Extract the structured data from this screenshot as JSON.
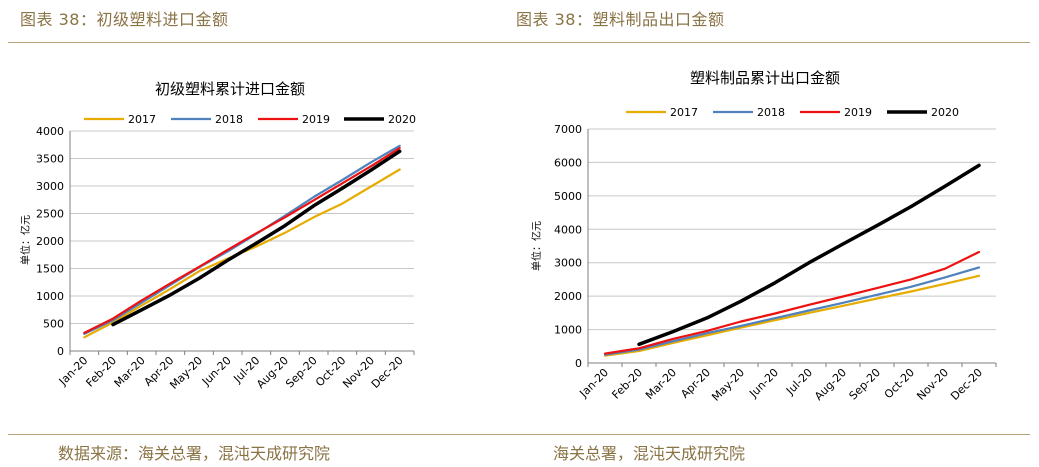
{
  "header": {
    "left_title": "图表 38：初级塑料进口金额",
    "right_title": "图表 38：塑料制品出口金额"
  },
  "footer": {
    "left_source": "数据来源：海关总署，混沌天成研究院",
    "right_source": "海关总署，混沌天成研究院"
  },
  "colors": {
    "accent": "#8a7345",
    "rule": "#b8a27a",
    "series": [
      "#e6ac00",
      "#4f81bd",
      "#ee1111",
      "#000000"
    ]
  },
  "chart_data": [
    {
      "type": "line",
      "title": "初级塑料累计进口金额",
      "xlabel": "",
      "ylabel": "单位：亿元",
      "ylim": [
        0,
        4000
      ],
      "yticks": [
        0,
        500,
        1000,
        1500,
        2000,
        2500,
        3000,
        3500,
        4000
      ],
      "grid": true,
      "legend": "top",
      "categories": [
        "Jan-20",
        "Feb-20",
        "Mar-20",
        "Apr-20",
        "May-20",
        "Jun-20",
        "Jul-20",
        "Aug-20",
        "Sep-20",
        "Oct-20",
        "Nov-20",
        "Dec-20"
      ],
      "series": [
        {
          "name": "2017",
          "values": [
            250,
            520,
            830,
            1130,
            1450,
            1680,
            1900,
            2150,
            2430,
            2680,
            2990,
            3300
          ]
        },
        {
          "name": "2018",
          "values": [
            310,
            560,
            880,
            1200,
            1520,
            1810,
            2130,
            2460,
            2800,
            3110,
            3430,
            3730
          ]
        },
        {
          "name": "2019",
          "values": [
            330,
            590,
            920,
            1230,
            1530,
            1840,
            2140,
            2430,
            2740,
            3050,
            3360,
            3690
          ]
        },
        {
          "name": "2020",
          "values": [
            null,
            480,
            750,
            1020,
            1320,
            1650,
            1960,
            2280,
            2640,
            2960,
            3290,
            3630
          ]
        }
      ]
    },
    {
      "type": "line",
      "title": "塑料制品累计出口金额",
      "xlabel": "",
      "ylabel": "单位：亿元",
      "ylim": [
        0,
        7000
      ],
      "yticks": [
        0,
        1000,
        2000,
        3000,
        4000,
        5000,
        6000,
        7000
      ],
      "grid": true,
      "legend": "top",
      "categories": [
        "Jan-20",
        "Feb-20",
        "Mar-20",
        "Apr-20",
        "May-20",
        "Jun-20",
        "Jul-20",
        "Aug-20",
        "Sep-20",
        "Oct-20",
        "Nov-20",
        "Dec-20"
      ],
      "series": [
        {
          "name": "2017",
          "values": [
            220,
            360,
            600,
            830,
            1060,
            1280,
            1500,
            1710,
            1930,
            2140,
            2370,
            2610
          ]
        },
        {
          "name": "2018",
          "values": [
            250,
            400,
            650,
            890,
            1110,
            1340,
            1570,
            1800,
            2040,
            2280,
            2560,
            2860
          ]
        },
        {
          "name": "2019",
          "values": [
            280,
            440,
            720,
            960,
            1240,
            1480,
            1740,
            1990,
            2240,
            2500,
            2820,
            3320
          ]
        },
        {
          "name": "2020",
          "values": [
            null,
            560,
            940,
            1350,
            1850,
            2400,
            3000,
            3560,
            4110,
            4680,
            5290,
            5910
          ]
        }
      ]
    }
  ]
}
